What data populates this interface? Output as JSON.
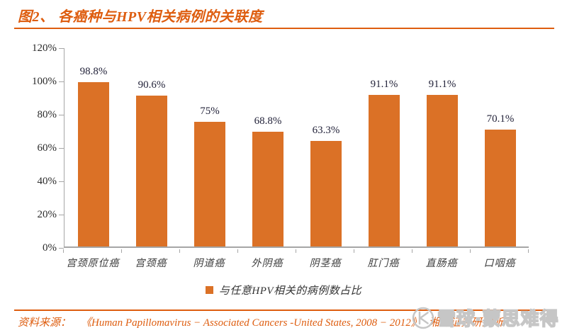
{
  "header": {
    "title": "图2、 各癌种与HPV相关病例的关联度"
  },
  "chart_data": {
    "type": "bar",
    "title": "各癌种与HPV相关病例的关联度",
    "categories": [
      "宫颈原位癌",
      "宫颈癌",
      "阴道癌",
      "外阴癌",
      "阴茎癌",
      "肛门癌",
      "直肠癌",
      "口咽癌"
    ],
    "values": [
      98.8,
      90.6,
      75,
      68.8,
      63.3,
      91.1,
      91.1,
      70.1
    ],
    "value_labels": [
      "98.8%",
      "90.6%",
      "75%",
      "68.8%",
      "63.3%",
      "91.1%",
      "91.1%",
      "70.1%"
    ],
    "y_ticks": [
      "120%",
      "100%",
      "80%",
      "60%",
      "40%",
      "20%",
      "0%"
    ],
    "ylim": [
      0,
      120
    ],
    "xlabel": "",
    "ylabel": "",
    "grid": false,
    "legend": "与任意HPV相关的病例数占比",
    "legend_position": "bottom"
  },
  "footer": {
    "source_label": "资料来源：",
    "source_reference": "《Human Papillomavirus − Associated Cancers -United States, 2008 − 2012》",
    "source_organization": "湘财证券研究所"
  },
  "watermark": {
    "text": "雪球·蒙思难得",
    "logo": "xueqiu-logo"
  },
  "colors": {
    "accent": "#DE5D0F",
    "bar": "#DB7126",
    "axis": "#A6A6A6",
    "value_ink": "#23233A",
    "cat_ink": "#3A3A3A",
    "wm": "#C6C6C6"
  }
}
